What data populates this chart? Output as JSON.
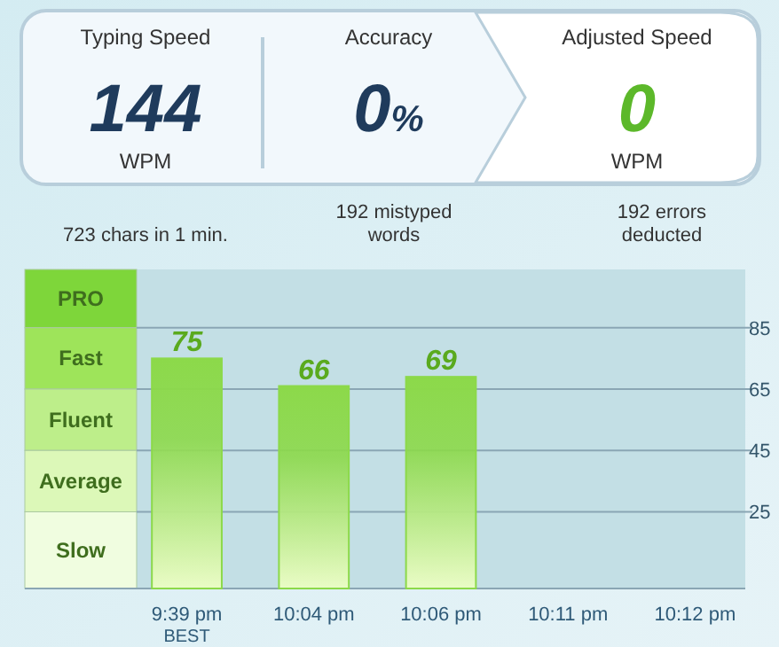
{
  "chart_data": [
    {
      "type": "other",
      "annotations": [
        "Typing Speed",
        "144",
        "WPM",
        "Accuracy",
        "0%",
        "Adjusted Speed",
        "0",
        "WPM",
        "723 chars in 1 min.",
        "192 mistyped words",
        "192 errors deducted"
      ]
    },
    {
      "type": "bar",
      "categories": [
        "9:39 pm",
        "10:04 pm",
        "10:06 pm",
        "10:11 pm",
        "10:12 pm"
      ],
      "values": [
        75,
        66,
        69,
        null,
        null
      ],
      "color": "#8cd94a",
      "data_labels": true,
      "ylim": [
        0,
        104
      ],
      "yticks": [
        25,
        45,
        65,
        85
      ],
      "grid": "y",
      "annotations": [
        "PRO",
        "Fast",
        "Fluent",
        "Average",
        "Slow",
        "BEST"
      ]
    }
  ]
}
